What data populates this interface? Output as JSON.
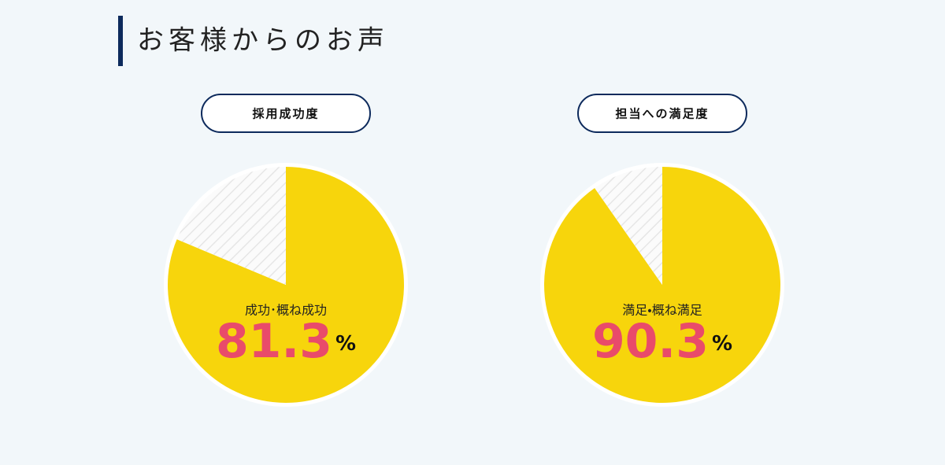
{
  "heading": "お客様からのお声",
  "chart_data": [
    {
      "type": "pie",
      "title": "採用成功度",
      "categories": [
        "成功･概ね成功",
        null
      ],
      "values": [
        81.3,
        18.7
      ],
      "colors": [
        "#f7d50c",
        "#fbfbfb"
      ],
      "unit": "%"
    },
    {
      "type": "pie",
      "title": "担当への満足度",
      "categories": [
        "満足・概ね満足",
        null
      ],
      "values": [
        90.3,
        9.7
      ],
      "colors": [
        "#f7d50c",
        "#fbfbfb"
      ],
      "unit": "%"
    }
  ]
}
